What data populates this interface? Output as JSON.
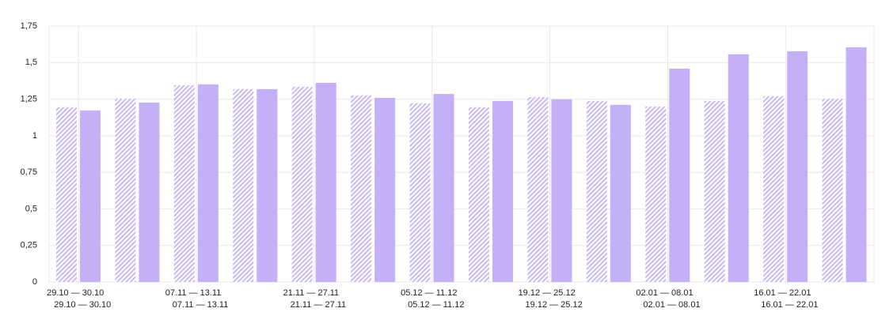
{
  "chart_data": {
    "type": "bar",
    "categories": [
      "29.10 — 30.10",
      null,
      "07.11 — 13.11",
      null,
      "21.11 — 27.11",
      null,
      "05.12 — 11.12",
      null,
      "19.12 — 25.12",
      null,
      "02.01 — 08.01",
      null,
      "16.01 — 22.01",
      null
    ],
    "series": [
      {
        "color": "#c9b9f2",
        "hatch": true,
        "values": [
          1.195,
          1.254,
          1.346,
          1.319,
          1.335,
          1.276,
          1.222,
          1.195,
          1.265,
          1.238,
          1.2,
          1.238,
          1.27,
          1.254
        ]
      },
      {
        "color": "#c4b0f7",
        "hatch": false,
        "values": [
          1.173,
          1.227,
          1.351,
          1.319,
          1.362,
          1.259,
          1.286,
          1.238,
          1.249,
          1.211,
          1.459,
          1.557,
          1.578,
          1.605
        ]
      }
    ],
    "ylim": [
      0,
      1.75
    ],
    "yticks": [
      0,
      {
        "value": 0.25,
        "label": "0,25"
      },
      {
        "value": 0.5,
        "label": "0,5"
      },
      {
        "value": 0.75,
        "label": "0,75"
      },
      1,
      {
        "value": 1.25,
        "label": "1,25"
      },
      {
        "value": 1.5,
        "label": "1,5"
      },
      {
        "value": 1.75,
        "label": "1,75"
      }
    ],
    "grid": true
  }
}
